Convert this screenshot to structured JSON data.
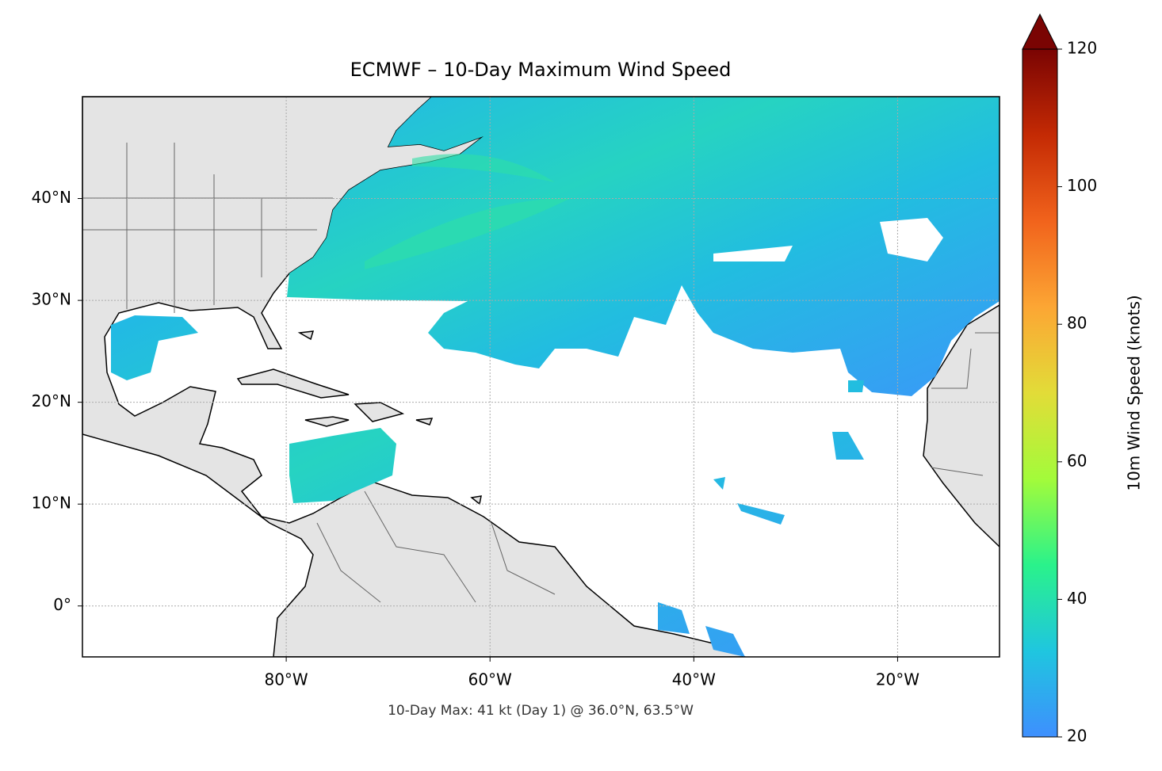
{
  "chart_data": {
    "type": "map",
    "title": "ECMWF – 10-Day Maximum Wind Speed",
    "annotation": "10-Day Max: 41 kt (Day 1) @ 36.0°N, 63.5°W",
    "xlim": [
      -100,
      -10
    ],
    "ylim": [
      -5,
      50
    ],
    "xticks": [
      {
        "value": -80,
        "label": "80°W"
      },
      {
        "value": -60,
        "label": "60°W"
      },
      {
        "value": -40,
        "label": "40°W"
      },
      {
        "value": -20,
        "label": "20°W"
      }
    ],
    "yticks": [
      {
        "value": 0,
        "label": "0°"
      },
      {
        "value": 10,
        "label": "10°N"
      },
      {
        "value": 20,
        "label": "20°N"
      },
      {
        "value": 30,
        "label": "30°N"
      },
      {
        "value": 40,
        "label": "40°N"
      }
    ],
    "grid": true,
    "colorbar": {
      "label": "10m Wind Speed (knots)",
      "lim": [
        20,
        120
      ],
      "ticks": [
        20,
        40,
        60,
        80,
        100,
        120
      ],
      "extend": "max",
      "colors": [
        "#3e8ffe",
        "#1fc6df",
        "#2af28b",
        "#a3fb3a",
        "#e2dc38",
        "#fca634",
        "#f1631c",
        "#c42a04",
        "#7a0403"
      ]
    }
  }
}
